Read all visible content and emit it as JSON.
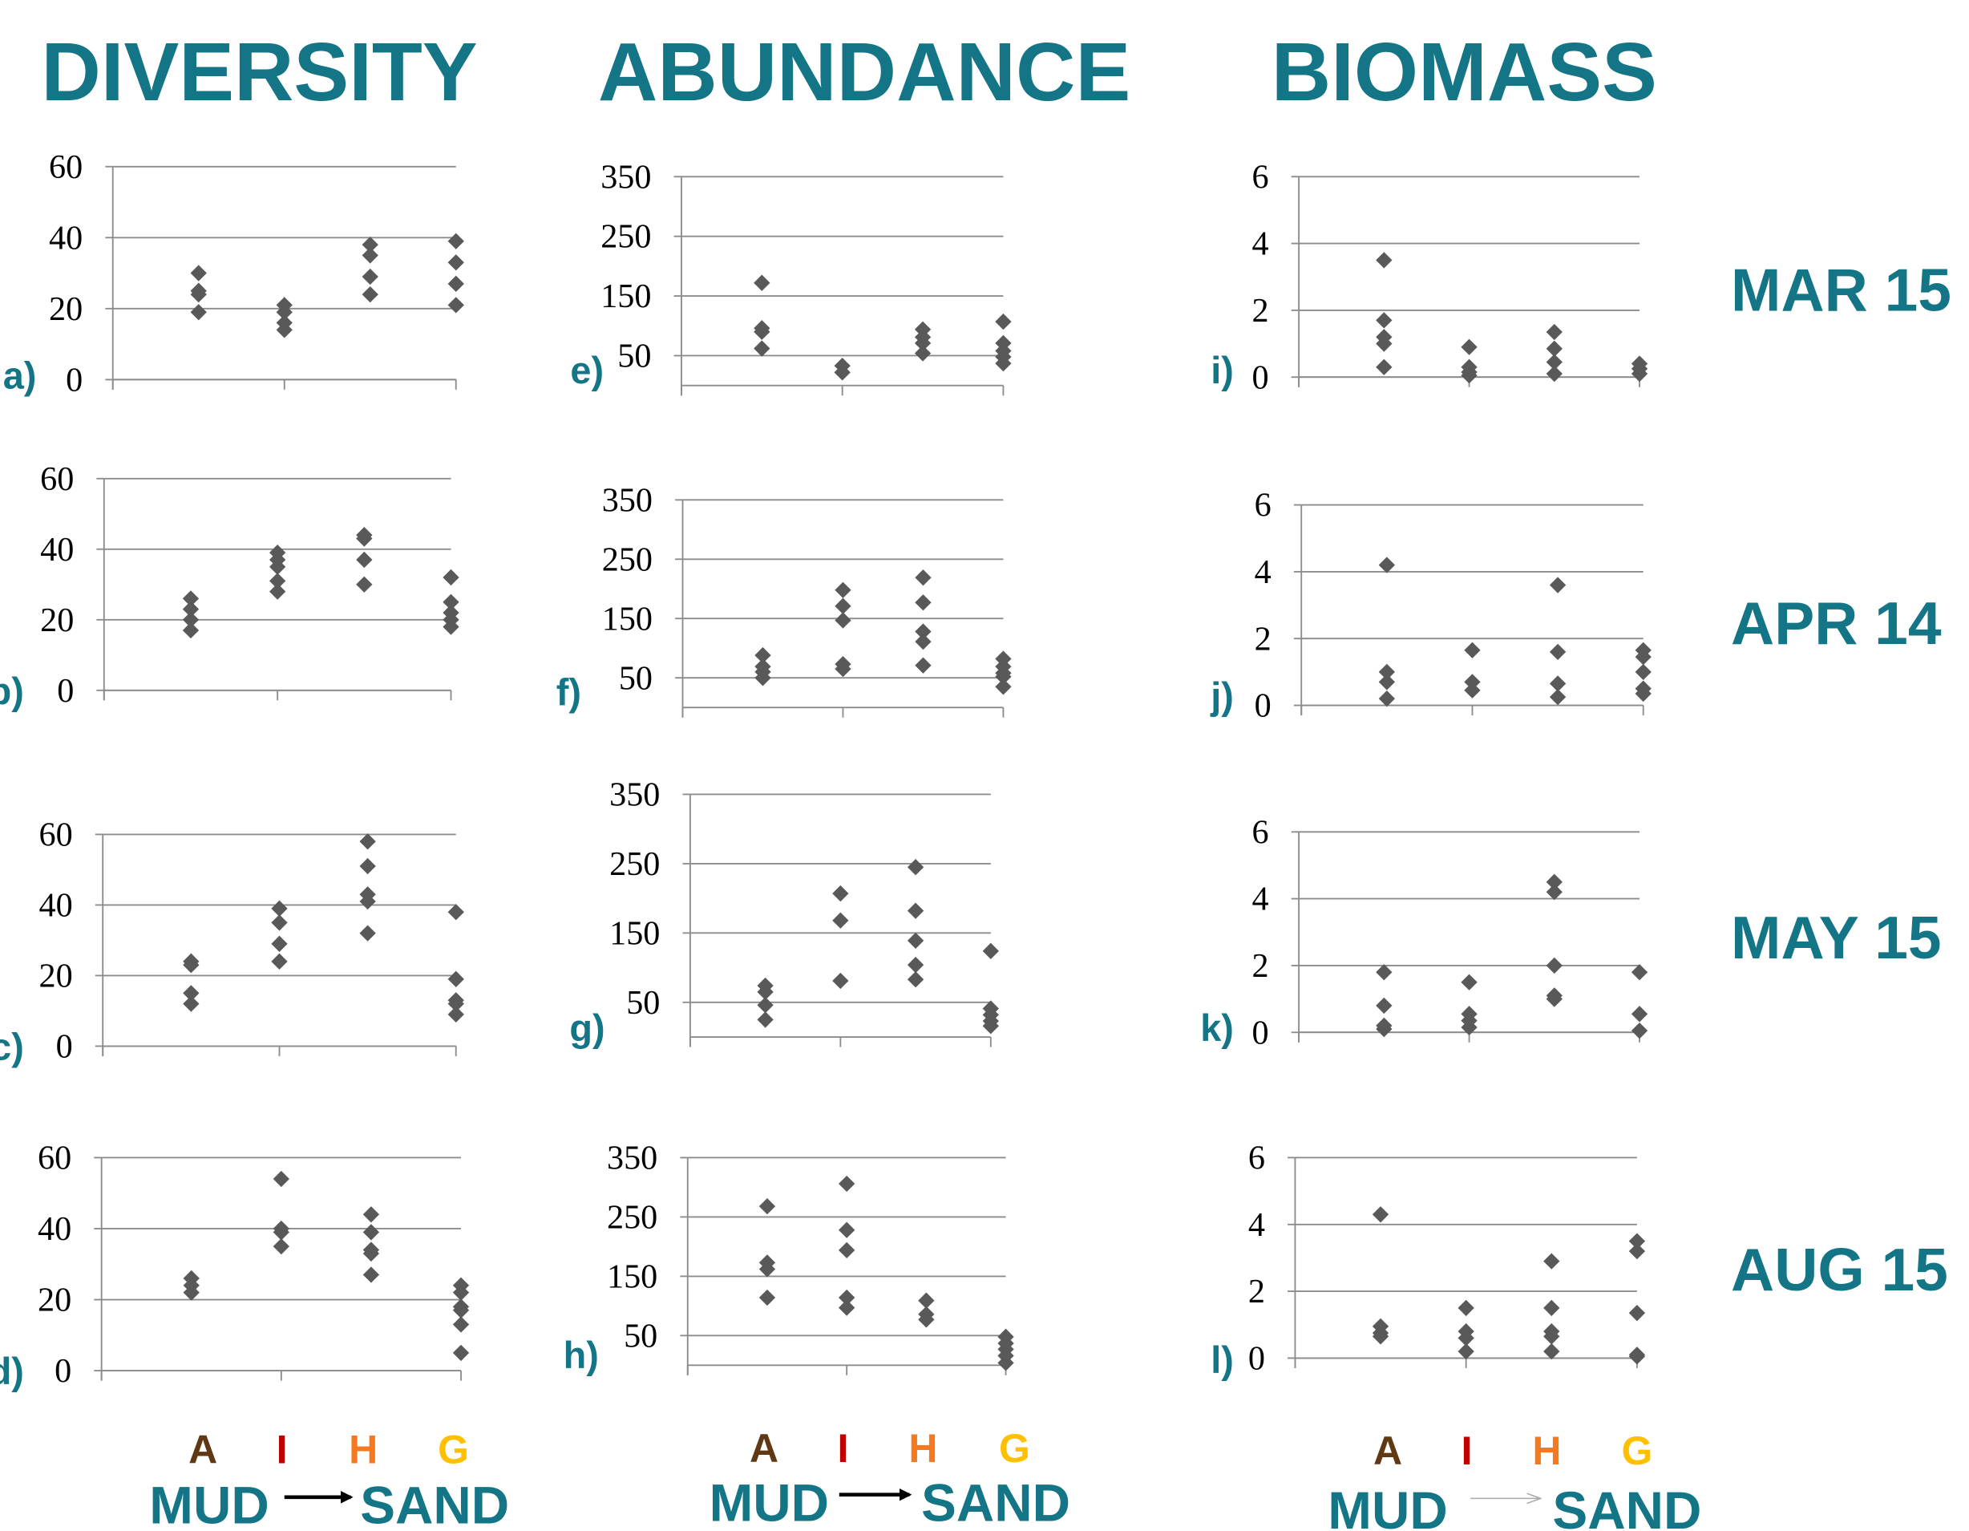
{
  "columns": [
    "DIVERSITY",
    "ABUNDANCE",
    "BIOMASS"
  ],
  "rows": [
    "MAR 15",
    "APR 14",
    "MAY 15",
    "AUG 15"
  ],
  "categories": [
    {
      "label": "A",
      "color": "#603813"
    },
    {
      "label": "I",
      "color": "#c00000"
    },
    {
      "label": "H",
      "color": "#f47920"
    },
    {
      "label": "G",
      "color": "#ffc000"
    }
  ],
  "gradient": {
    "from": "MUD",
    "to": "SAND"
  },
  "chart_data": [
    {
      "type": "scatter",
      "label": "a)",
      "xlim": [
        0,
        4
      ],
      "xticks": [
        0,
        2,
        4
      ],
      "ylim": [
        0,
        60
      ],
      "yticks": [
        0,
        20,
        40,
        60
      ],
      "grid": true,
      "series": [
        {
          "color": "#595959",
          "x": [
            1,
            1,
            1,
            1,
            2,
            2,
            2,
            2,
            3,
            3,
            3,
            3,
            4,
            4,
            4,
            4
          ],
          "values": [
            30,
            25,
            24,
            19,
            21,
            19,
            16,
            14,
            38,
            35,
            29,
            24,
            39,
            33,
            27,
            21
          ]
        }
      ]
    },
    {
      "type": "scatter",
      "label": "b)",
      "xlim": [
        0,
        4
      ],
      "xticks": [
        0,
        2,
        4
      ],
      "ylim": [
        0,
        60
      ],
      "yticks": [
        0,
        20,
        40,
        60
      ],
      "grid": true,
      "series": [
        {
          "color": "#595959",
          "x": [
            1,
            1,
            1,
            1,
            2,
            2,
            2,
            2,
            2,
            3,
            3,
            3,
            3,
            4,
            4,
            4,
            4,
            4
          ],
          "values": [
            26,
            23,
            20,
            17,
            39,
            37,
            35,
            31,
            28,
            44,
            43,
            37,
            30,
            32,
            25,
            22,
            20,
            18
          ]
        }
      ]
    },
    {
      "type": "scatter",
      "label": "c)",
      "xlim": [
        0,
        4
      ],
      "xticks": [
        0,
        2,
        4
      ],
      "ylim": [
        0,
        60
      ],
      "yticks": [
        0,
        20,
        40,
        60
      ],
      "grid": true,
      "series": [
        {
          "color": "#595959",
          "x": [
            1,
            1,
            1,
            1,
            2,
            2,
            2,
            2,
            3,
            3,
            3,
            3,
            3,
            4,
            4,
            4,
            4,
            4
          ],
          "values": [
            24,
            23,
            15,
            12,
            39,
            35,
            29,
            24,
            58,
            51,
            43,
            41,
            32,
            38,
            19,
            13,
            12,
            9
          ]
        }
      ]
    },
    {
      "type": "scatter",
      "label": "d)",
      "xlim": [
        0,
        4
      ],
      "xticks": [
        0,
        2,
        4
      ],
      "ylim": [
        0,
        60
      ],
      "yticks": [
        0,
        20,
        40,
        60
      ],
      "grid": true,
      "series": [
        {
          "color": "#595959",
          "x": [
            1,
            1,
            1,
            2,
            2,
            2,
            2,
            3,
            3,
            3,
            3,
            3,
            4,
            4,
            4,
            4,
            4,
            4
          ],
          "values": [
            26,
            24,
            22,
            54,
            40,
            39,
            35,
            44,
            39,
            34,
            33,
            27,
            24,
            22,
            18,
            17,
            13,
            5
          ]
        }
      ]
    },
    {
      "type": "scatter",
      "label": "e)",
      "xlim": [
        0,
        4
      ],
      "xticks": [
        0,
        2,
        4
      ],
      "ylim": [
        0,
        350
      ],
      "yticks": [
        50,
        150,
        250,
        350
      ],
      "grid": true,
      "series": [
        {
          "color": "#595959",
          "x": [
            1,
            1,
            1,
            1,
            2,
            2,
            3,
            3,
            3,
            3,
            4,
            4,
            4,
            4,
            4
          ],
          "values": [
            172,
            96,
            90,
            62,
            33,
            22,
            94,
            81,
            71,
            54,
            107,
            71,
            58,
            48,
            37
          ]
        }
      ]
    },
    {
      "type": "scatter",
      "label": "f)",
      "xlim": [
        0,
        4
      ],
      "xticks": [
        0,
        2,
        4
      ],
      "ylim": [
        0,
        350
      ],
      "yticks": [
        50,
        150,
        250,
        350
      ],
      "grid": true,
      "series": [
        {
          "color": "#595959",
          "x": [
            1,
            1,
            1,
            1,
            2,
            2,
            2,
            2,
            2,
            3,
            3,
            3,
            3,
            3,
            4,
            4,
            4,
            4,
            4
          ],
          "values": [
            88,
            69,
            60,
            50,
            198,
            171,
            147,
            73,
            65,
            219,
            177,
            128,
            111,
            71,
            82,
            69,
            58,
            52,
            35
          ]
        }
      ]
    },
    {
      "type": "scatter",
      "label": "g)",
      "xlim": [
        0,
        4
      ],
      "xticks": [
        0,
        2,
        4
      ],
      "ylim": [
        0,
        350
      ],
      "yticks": [
        50,
        150,
        250,
        350
      ],
      "grid": true,
      "series": [
        {
          "color": "#595959",
          "x": [
            1,
            1,
            1,
            1,
            2,
            2,
            2,
            3,
            3,
            3,
            3,
            3,
            4,
            4,
            4,
            4,
            4
          ],
          "values": [
            74,
            65,
            46,
            25,
            207,
            168,
            81,
            245,
            182,
            139,
            104,
            83,
            124,
            41,
            32,
            23,
            16
          ]
        }
      ]
    },
    {
      "type": "scatter",
      "label": "h)",
      "xlim": [
        0,
        4
      ],
      "xticks": [
        0,
        2,
        4
      ],
      "ylim": [
        0,
        350
      ],
      "yticks": [
        50,
        150,
        250,
        350
      ],
      "grid": true,
      "series": [
        {
          "color": "#595959",
          "x": [
            1,
            1,
            1,
            1,
            2,
            2,
            2,
            2,
            2,
            3,
            3,
            3,
            4,
            4,
            4,
            4,
            4
          ],
          "values": [
            268,
            173,
            162,
            114,
            306,
            228,
            194,
            114,
            97,
            109,
            86,
            77,
            48,
            37,
            27,
            16,
            4
          ]
        }
      ]
    },
    {
      "type": "scatter",
      "label": "i)",
      "xlim": [
        0,
        4
      ],
      "xticks": [
        0,
        2,
        4
      ],
      "ylim": [
        0,
        6
      ],
      "yticks": [
        0,
        2,
        4,
        6
      ],
      "grid": true,
      "series": [
        {
          "color": "#595959",
          "x": [
            1,
            1,
            1,
            1,
            1,
            2,
            2,
            2,
            2,
            3,
            3,
            3,
            3,
            4,
            4,
            4
          ],
          "values": [
            3.5,
            1.7,
            1.2,
            1.0,
            0.3,
            0.9,
            0.3,
            0.15,
            0.05,
            1.35,
            0.85,
            0.45,
            0.1,
            0.4,
            0.25,
            0.1
          ]
        }
      ]
    },
    {
      "type": "scatter",
      "label": "j)",
      "xlim": [
        0,
        4
      ],
      "xticks": [
        0,
        2,
        4
      ],
      "ylim": [
        0,
        6
      ],
      "yticks": [
        0,
        2,
        4,
        6
      ],
      "grid": true,
      "series": [
        {
          "color": "#595959",
          "x": [
            1,
            1,
            1,
            1,
            2,
            2,
            2,
            3,
            3,
            3,
            3,
            4,
            4,
            4,
            4,
            4
          ],
          "values": [
            4.2,
            1.0,
            0.7,
            0.2,
            1.65,
            0.7,
            0.45,
            3.6,
            1.6,
            0.65,
            0.25,
            1.65,
            1.45,
            1.0,
            0.5,
            0.35
          ]
        }
      ]
    },
    {
      "type": "scatter",
      "label": "k)",
      "xlim": [
        0,
        4
      ],
      "xticks": [
        0,
        2,
        4
      ],
      "ylim": [
        0,
        6
      ],
      "yticks": [
        0,
        2,
        4,
        6
      ],
      "grid": true,
      "series": [
        {
          "color": "#595959",
          "x": [
            1,
            1,
            1,
            1,
            2,
            2,
            2,
            2,
            3,
            3,
            3,
            3,
            3,
            4,
            4,
            4
          ],
          "values": [
            1.8,
            0.8,
            0.2,
            0.1,
            1.5,
            0.55,
            0.35,
            0.15,
            4.5,
            4.2,
            2.0,
            1.1,
            1.0,
            1.8,
            0.55,
            0.05
          ]
        }
      ]
    },
    {
      "type": "scatter",
      "label": "l)",
      "xlim": [
        0,
        4
      ],
      "xticks": [
        0,
        2,
        4
      ],
      "ylim": [
        0,
        6
      ],
      "yticks": [
        0,
        2,
        4,
        6
      ],
      "grid": true,
      "series": [
        {
          "color": "#595959",
          "x": [
            1,
            1,
            1,
            1,
            2,
            2,
            2,
            2,
            3,
            3,
            3,
            3,
            3,
            4,
            4,
            4,
            4,
            4
          ],
          "values": [
            4.3,
            0.95,
            0.75,
            0.65,
            1.5,
            0.8,
            0.6,
            0.2,
            2.9,
            1.5,
            0.8,
            0.65,
            0.2,
            3.5,
            3.2,
            1.35,
            0.1,
            0.05
          ]
        }
      ]
    }
  ]
}
